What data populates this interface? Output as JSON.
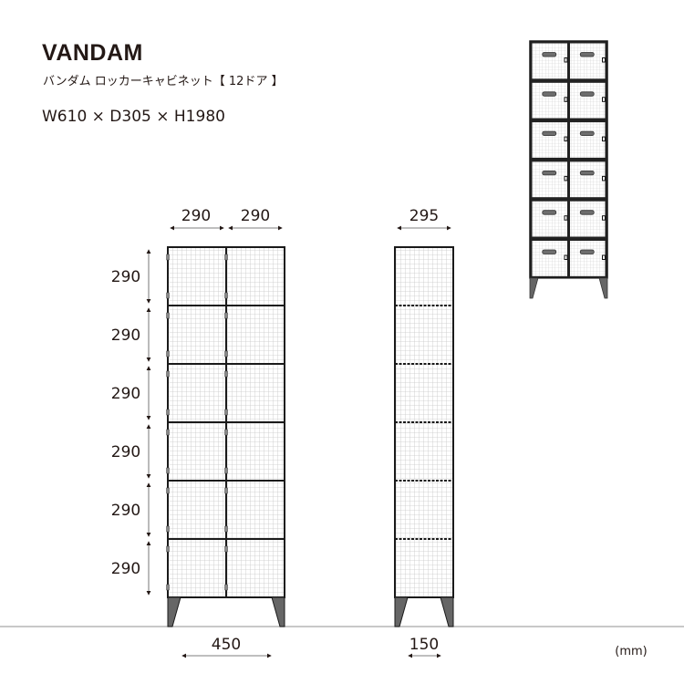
{
  "header": {
    "title": "VANDAM",
    "subtitle": "バンダム ロッカーキャビネット【 12ドア 】",
    "size": "W610 × D305 × H1980"
  },
  "dimensions": {
    "front_top": [
      "290",
      "290"
    ],
    "side_top": "295",
    "row_heights": [
      "290",
      "290",
      "290",
      "290",
      "290",
      "290"
    ],
    "front_legs": "450",
    "side_legs": "150",
    "unit": "(mm)"
  },
  "product": {
    "columns": 2,
    "rows": 6,
    "doors": 12
  },
  "colors": {
    "frame": "#1a1a1a",
    "mesh": "#c8c8c8",
    "leg": "#666666",
    "handle": "#6e6e6e",
    "floor": "#b5b5b5"
  }
}
